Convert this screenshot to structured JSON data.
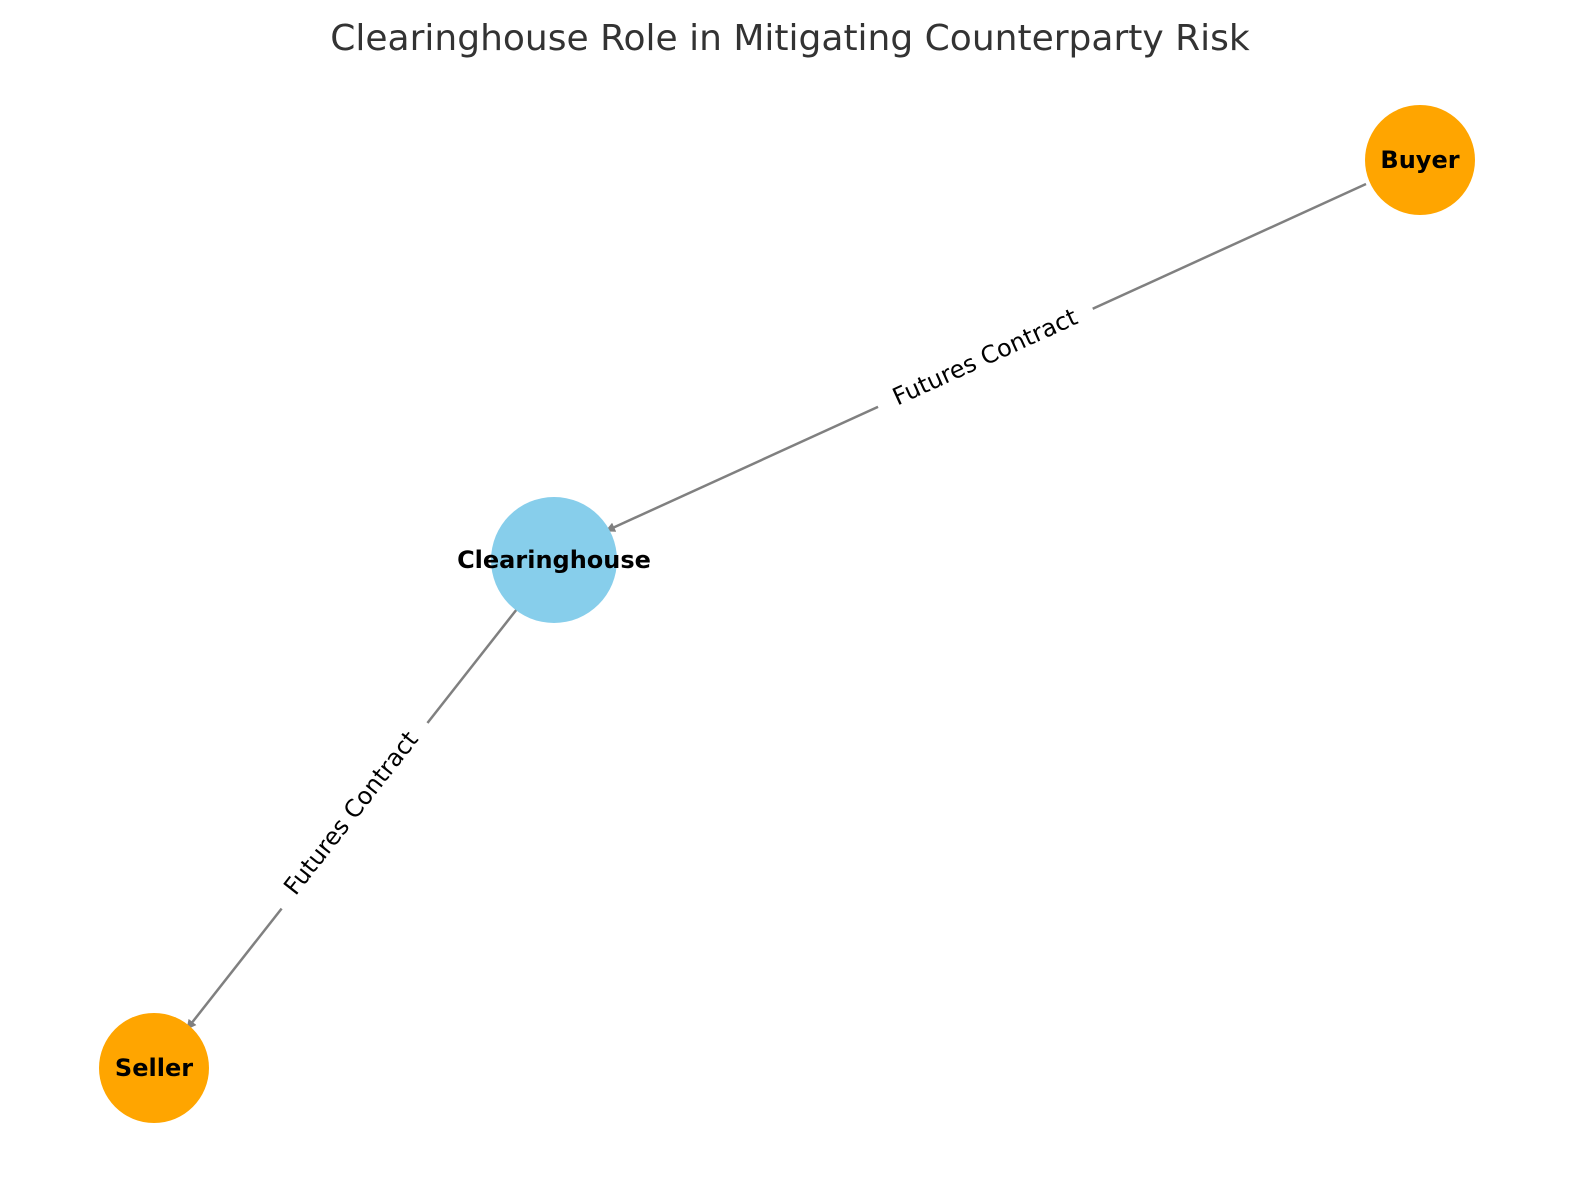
{
  "title": "Clearinghouse Role in Mitigating Counterparty Risk",
  "colors": {
    "clearinghouse_node": "#87CEEB",
    "party_node": "#FFA500",
    "edge": "#808080",
    "title": "#333333"
  },
  "nodes": [
    {
      "id": "buyer",
      "label": "Buyer",
      "role": "party"
    },
    {
      "id": "clearinghouse",
      "label": "Clearinghouse",
      "role": "clearinghouse"
    },
    {
      "id": "seller",
      "label": "Seller",
      "role": "party"
    }
  ],
  "edges": [
    {
      "from": "buyer",
      "to": "clearinghouse",
      "label": "Futures Contract",
      "directed": true
    },
    {
      "from": "clearinghouse",
      "to": "seller",
      "label": "Futures Contract",
      "directed": true
    }
  ]
}
